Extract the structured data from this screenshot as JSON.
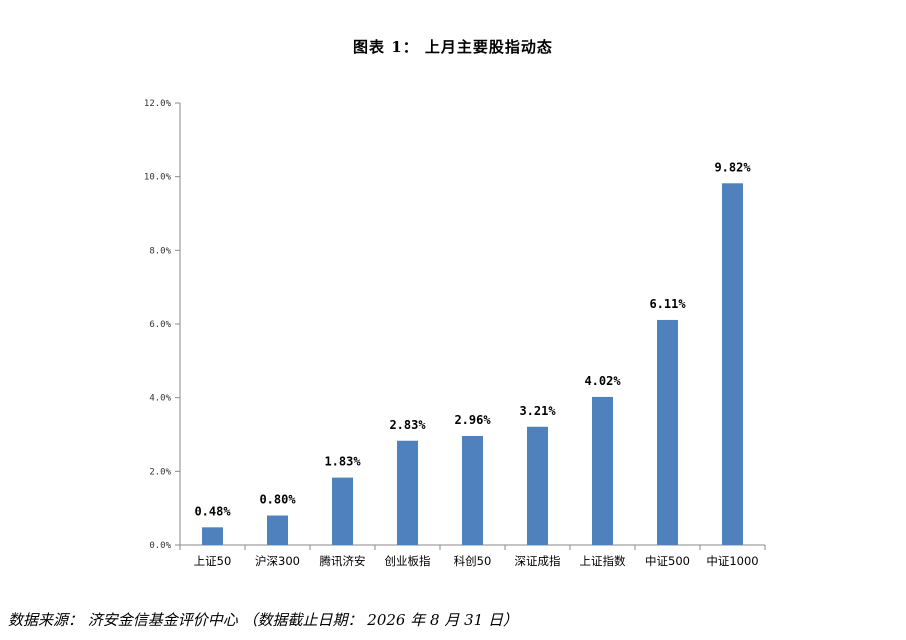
{
  "title": "图表 1： 上月主要股指动态",
  "source": "数据来源： 济安金信基金评价中心 （数据截止日期： 2026 年 8 月 31 日）",
  "colors": {
    "bar": "#4F81BD",
    "axis": "#888888"
  },
  "chart_data": {
    "type": "bar",
    "title": "图表 1： 上月主要股指动态",
    "categories": [
      "上证50",
      "沪深300",
      "腾讯济安",
      "创业板指",
      "科创50",
      "深证成指",
      "上证指数",
      "中证500",
      "中证1000"
    ],
    "values": [
      0.48,
      0.8,
      1.83,
      2.83,
      2.96,
      3.21,
      4.02,
      6.11,
      9.82
    ],
    "data_labels": [
      "0.48%",
      "0.80%",
      "1.83%",
      "2.83%",
      "2.96%",
      "3.21%",
      "4.02%",
      "6.11%",
      "9.82%"
    ],
    "y_ticks": [
      0,
      2,
      4,
      6,
      8,
      10,
      12
    ],
    "y_tick_labels": [
      "0.0%",
      "2.0%",
      "4.0%",
      "6.0%",
      "8.0%",
      "10.0%",
      "12.0%"
    ],
    "ylim": [
      0,
      12
    ],
    "xlabel": "",
    "ylabel": "",
    "grid": false,
    "legend": "none"
  }
}
